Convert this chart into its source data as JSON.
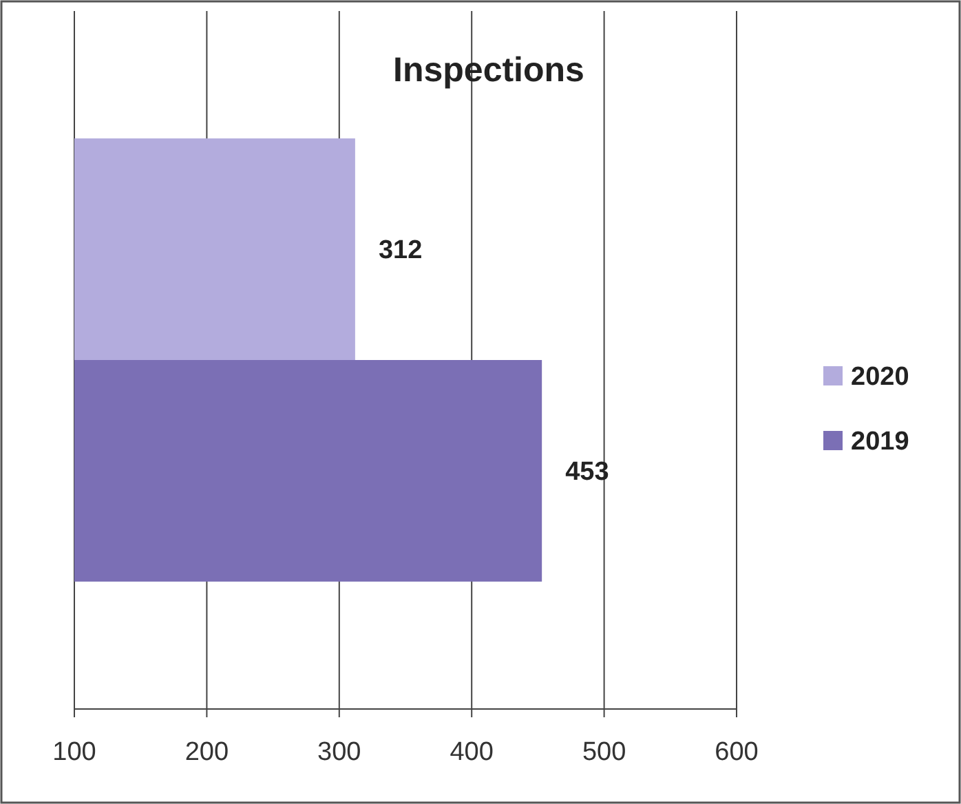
{
  "chart_data": {
    "type": "bar",
    "orientation": "horizontal",
    "title": "Inspections",
    "categories": [
      null
    ],
    "series": [
      {
        "name": "2020",
        "color": "#b3acdd",
        "values": [
          312
        ]
      },
      {
        "name": "2019",
        "color": "#7b6fb5",
        "values": [
          453
        ]
      }
    ],
    "xlim": [
      100,
      600
    ],
    "xticks": [
      100,
      200,
      300,
      400,
      500,
      600
    ],
    "grid": "x",
    "legend": "right",
    "data_labels": true
  }
}
